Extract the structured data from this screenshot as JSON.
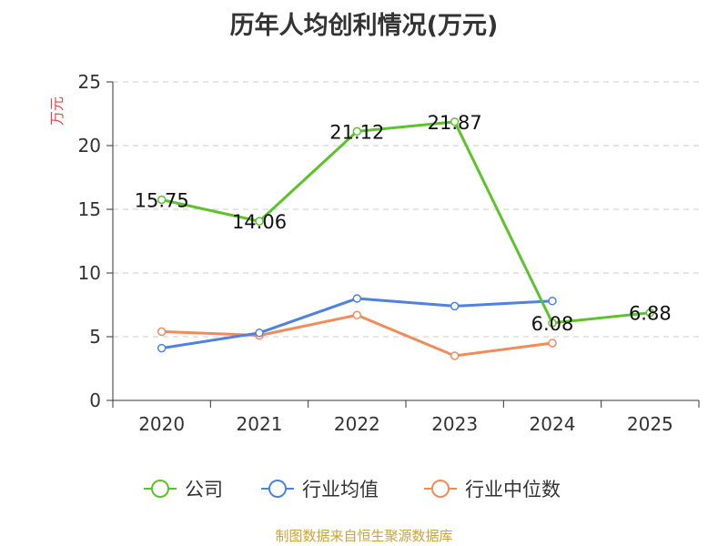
{
  "title": "历年人均创利情况(万元)",
  "footer": "制图数据来自恒生聚源数据库",
  "chart_data": {
    "type": "line",
    "title": "历年人均创利情况(万元)",
    "ylabel": "万元",
    "xlabel": "",
    "categories": [
      "2020",
      "2021",
      "2022",
      "2023",
      "2024",
      "2025"
    ],
    "ylim": [
      0,
      25
    ],
    "yticks": [
      0,
      5,
      10,
      15,
      20,
      25
    ],
    "grid": true,
    "legend_position": "bottom",
    "series": [
      {
        "name": "公司",
        "color": "#5dc22c",
        "values": [
          15.75,
          14.06,
          21.12,
          21.87,
          6.08,
          6.88
        ],
        "data_labels": [
          "15.75",
          "14.06",
          "21.12",
          "21.87",
          "6.08",
          "6.88"
        ]
      },
      {
        "name": "行业均值",
        "color": "#4f81df",
        "values": [
          4.1,
          5.3,
          8.0,
          7.4,
          7.8,
          null
        ]
      },
      {
        "name": "行业中位数",
        "color": "#f08c5a",
        "values": [
          5.4,
          5.1,
          6.7,
          3.5,
          4.5,
          null
        ]
      }
    ],
    "axis_color": "#333333",
    "grid_color": "#cccccc",
    "ylabel_color": "#e0474c"
  }
}
